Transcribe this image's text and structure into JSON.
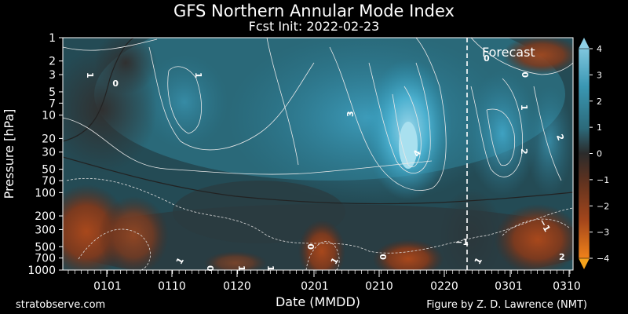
{
  "title": "GFS Northern Annular Mode Index",
  "subtitle": "Fcst Init: 2022-02-23",
  "footer_left": "stratobserve.com",
  "footer_right": "Figure by Z. D. Lawrence (NMT)",
  "chart_data": {
    "type": "heatmap",
    "xlabel": "Date (MMDD)",
    "ylabel": "Pressure [hPa]",
    "x_ticks": [
      "0101",
      "0110",
      "0120",
      "0201",
      "0210",
      "0220",
      "0301",
      "0310"
    ],
    "y_ticks": [
      "1",
      "2",
      "3",
      "5",
      "7",
      "10",
      "20",
      "30",
      "50",
      "70",
      "100",
      "200",
      "300",
      "500",
      "700",
      "1000"
    ],
    "y_scale": "log",
    "ylim": [
      1000,
      1
    ],
    "forecast_label": "Forecast",
    "forecast_start": "0223",
    "colorbar": {
      "ticks": [
        "4",
        "3",
        "2",
        "1",
        "0",
        "−1",
        "−2",
        "−3",
        "−4"
      ],
      "range": [
        -4,
        4
      ],
      "colors": {
        "pos_high": "#8fd0e6",
        "pos_mid": "#2f8ea6",
        "neutral": "#2c2c2c",
        "neg_mid": "#8a3e1e",
        "neg_high": "#f07a1a"
      }
    },
    "contour_labels": [
      "1",
      "0",
      "1",
      "3",
      "4",
      "0",
      "0",
      "1",
      "2",
      "2",
      "−1",
      "2",
      "1",
      "0",
      "1",
      "0",
      "1",
      "1",
      "−1",
      "1"
    ]
  }
}
